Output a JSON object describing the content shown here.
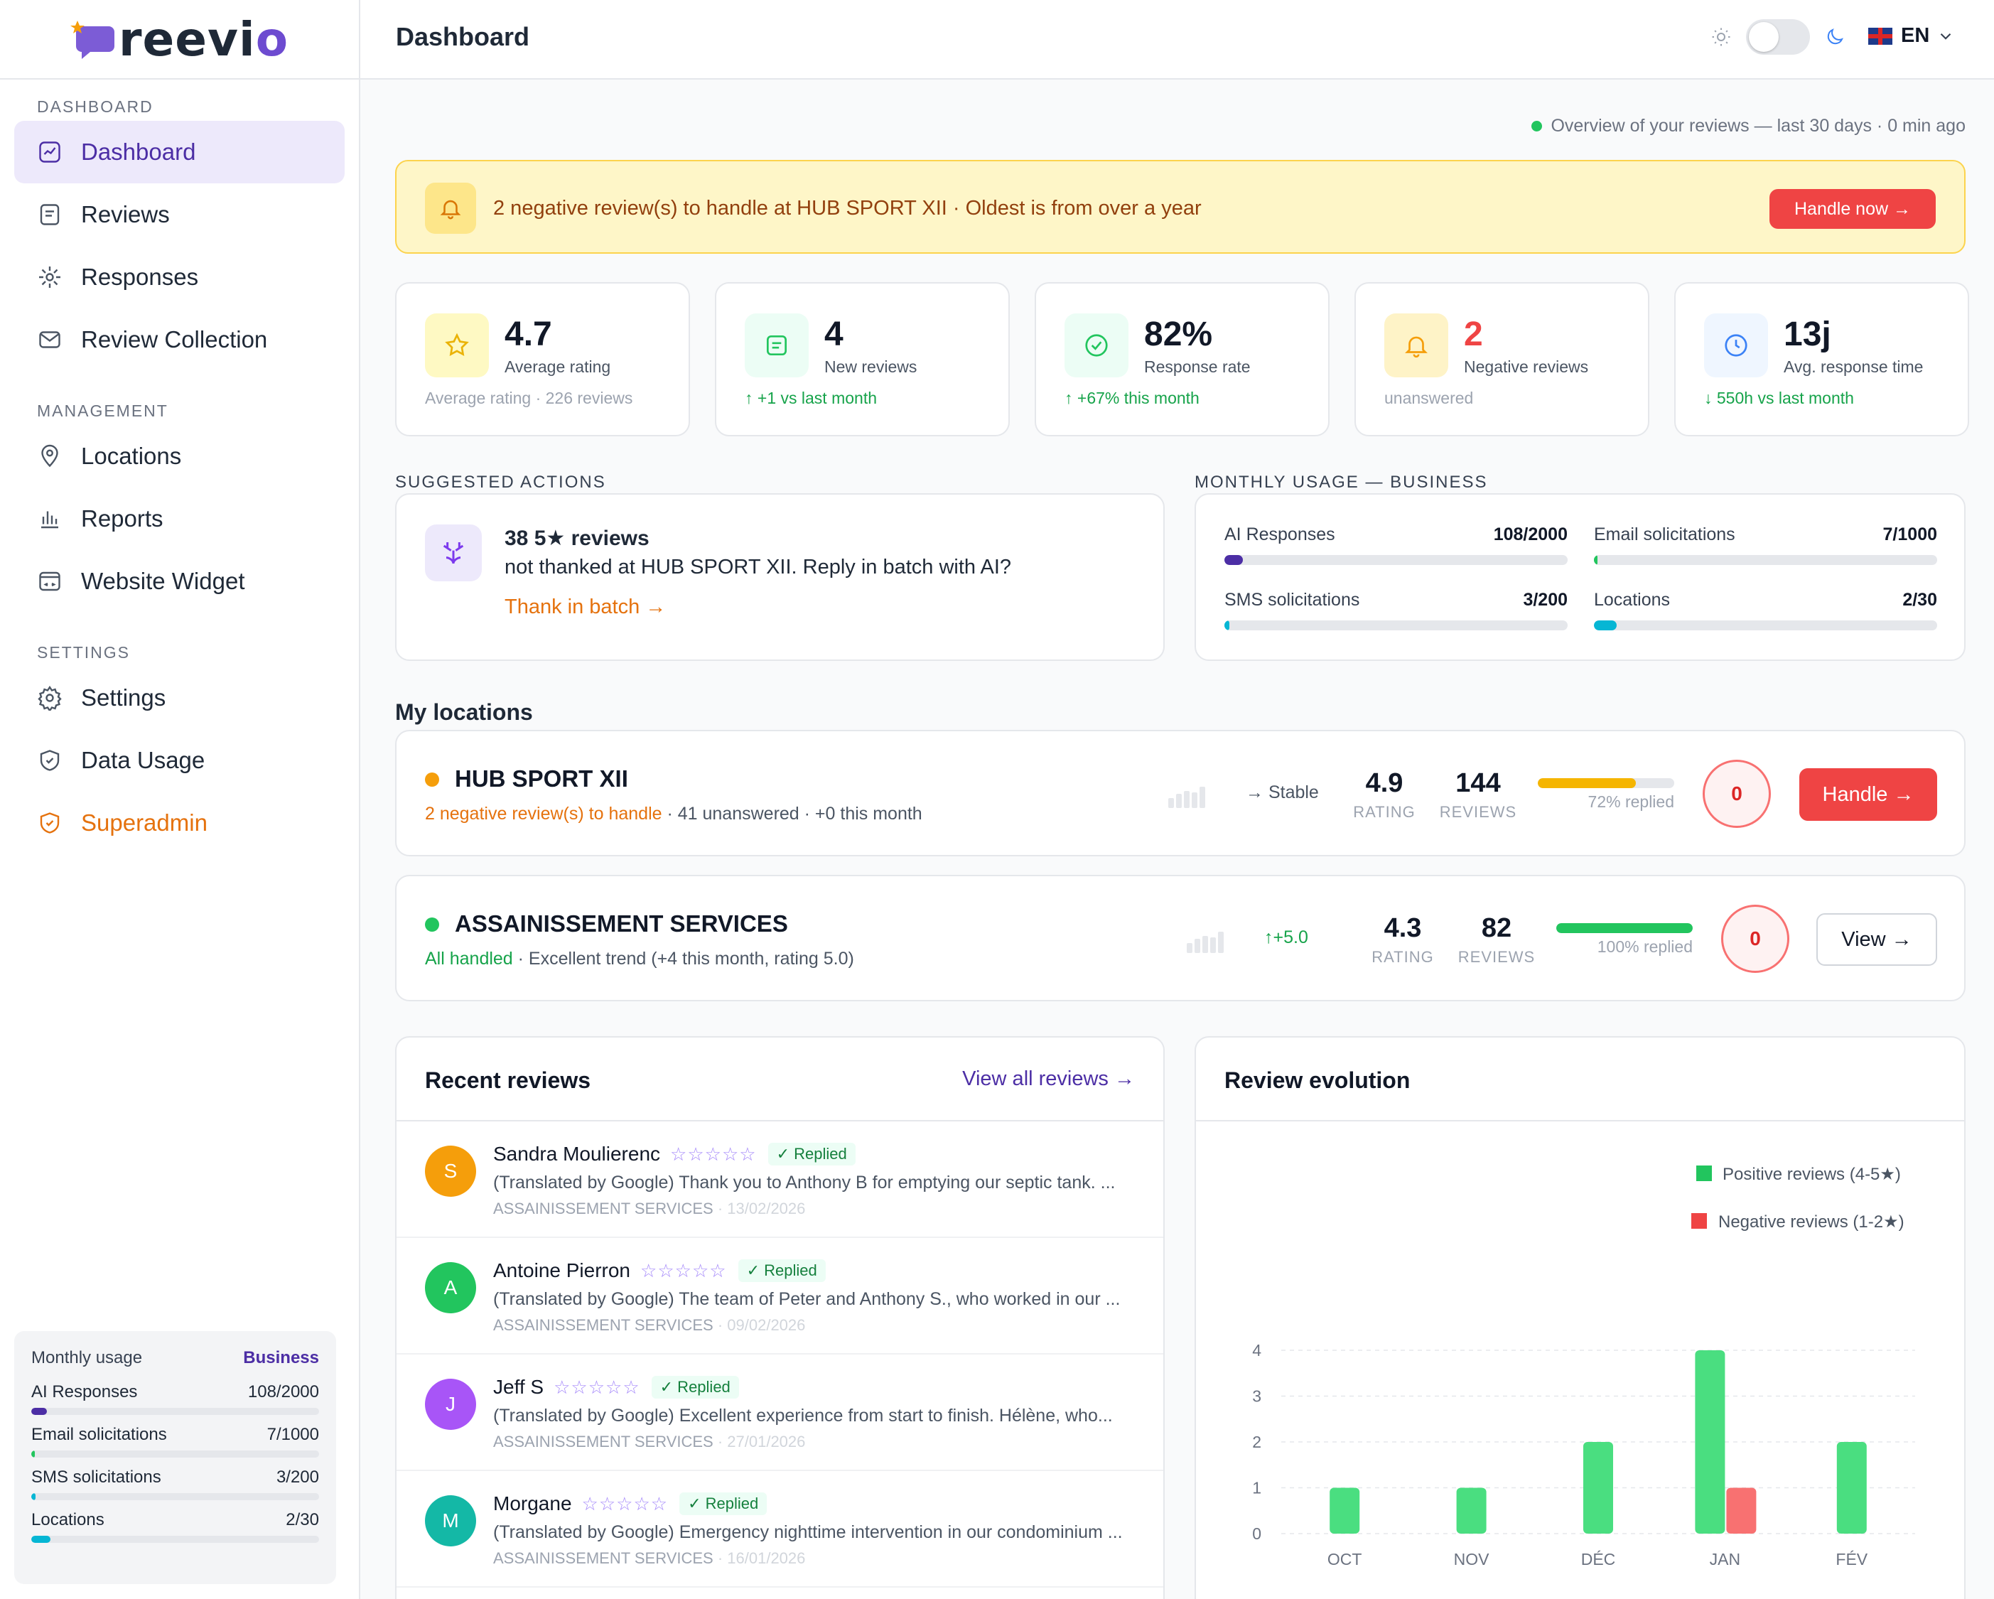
{
  "app": {
    "logo": "reevio",
    "page_title": "Dashboard",
    "lang": "EN"
  },
  "sidebar": {
    "sections": [
      {
        "label": "DASHBOARD",
        "items": [
          {
            "label": "Dashboard",
            "icon": "dashboard-icon",
            "active": true
          },
          {
            "label": "Reviews",
            "icon": "reviews-icon"
          },
          {
            "label": "Responses",
            "icon": "responses-icon"
          },
          {
            "label": "Review Collection",
            "icon": "mail-icon"
          }
        ]
      },
      {
        "label": "MANAGEMENT",
        "items": [
          {
            "label": "Locations",
            "icon": "location-pin-icon"
          },
          {
            "label": "Reports",
            "icon": "bar-chart-icon"
          },
          {
            "label": "Website Widget",
            "icon": "widget-icon"
          }
        ]
      },
      {
        "label": "SETTINGS",
        "items": [
          {
            "label": "Settings",
            "icon": "gear-icon"
          },
          {
            "label": "Data Usage",
            "icon": "shield-icon"
          },
          {
            "label": "Superadmin",
            "icon": "shield-icon",
            "accent": "#e5720e"
          }
        ]
      }
    ],
    "usage": {
      "title": "Monthly usage",
      "plan": "Business",
      "rows": [
        {
          "label": "AI Responses",
          "value": "108/2000",
          "fraction": 0.054,
          "color": "#4c2ea5"
        },
        {
          "label": "Email solicitations",
          "value": "7/1000",
          "fraction": 0.007,
          "color": "#22c55e"
        },
        {
          "label": "SMS solicitations",
          "value": "3/200",
          "fraction": 0.015,
          "color": "#06b6d4"
        },
        {
          "label": "Locations",
          "value": "2/30",
          "fraction": 0.067,
          "color": "#06b6d4"
        }
      ]
    }
  },
  "overview": "Overview of your reviews — last 30 days · 0 min ago",
  "alert": {
    "text": "2 negative review(s) to handle at HUB SPORT XII · Oldest is from over a year",
    "button": "Handle now →"
  },
  "stats": [
    {
      "value": "4.7",
      "label": "Average rating",
      "sub": "Average rating · 226 reviews",
      "icon": "star-icon",
      "icon_bg": "#fef9c3",
      "icon_color": "#eab308"
    },
    {
      "value": "4",
      "label": "New reviews",
      "sub": "↑  +1 vs last month",
      "icon": "message-icon",
      "icon_bg": "#ecfdf5",
      "icon_color": "#22c55e"
    },
    {
      "value": "82%",
      "label": "Response rate",
      "sub": "↑  +67% this month",
      "icon": "check-circle-icon",
      "icon_bg": "#ecfdf5",
      "icon_color": "#22c55e"
    },
    {
      "value": "2",
      "label": "Negative reviews",
      "sub": "unanswered",
      "icon": "bell-icon",
      "icon_bg": "#fef3c7",
      "icon_color": "#f59e0b",
      "value_color": "#ef4444"
    },
    {
      "value": "13j",
      "label": "Avg. response time",
      "sub": "↓  550h vs last month",
      "icon": "clock-icon",
      "icon_bg": "#eff6ff",
      "icon_color": "#3b82f6"
    }
  ],
  "suggested": {
    "section": "SUGGESTED ACTIONS",
    "title": "38 5★ reviews",
    "text": "not thanked at HUB SPORT XII. Reply in batch with AI?",
    "link": "Thank in batch →"
  },
  "monthly": {
    "section": "MONTHLY USAGE — BUSINESS",
    "rows": [
      {
        "label": "AI Responses",
        "value": "108/2000",
        "fraction": 0.054,
        "color": "#4c2ea5"
      },
      {
        "label": "Email solicitations",
        "value": "7/1000",
        "fraction": 0.007,
        "color": "#22c55e"
      },
      {
        "label": "SMS solicitations",
        "value": "3/200",
        "fraction": 0.015,
        "color": "#06b6d4"
      },
      {
        "label": "Locations",
        "value": "2/30",
        "fraction": 0.067,
        "color": "#06b6d4"
      }
    ]
  },
  "locations": {
    "title": "My locations",
    "items": [
      {
        "name": "HUB SPORT XII",
        "dot": "#f59e0b",
        "status": "2 negative review(s) to handle",
        "detail": " · 41 unanswered · +0 this month",
        "trend": "→ Stable",
        "rating": "4.9",
        "rating_label": "RATING",
        "reviews": "144",
        "reviews_label": "REVIEWS",
        "replied": "72% replied",
        "replied_fraction": 0.72,
        "bar_color": "#f5b500",
        "count": "0",
        "button": "Handle →"
      },
      {
        "name": "ASSAINISSEMENT SERVICES",
        "dot": "#22c55e",
        "status": "All handled",
        "detail": " · Excellent trend (+4 this month, rating 5.0)",
        "trend": "↑+5.0",
        "rating": "4.3",
        "rating_label": "RATING",
        "reviews": "82",
        "reviews_label": "REVIEWS",
        "replied": "100% replied",
        "replied_fraction": 1.0,
        "bar_color": "#22c55e",
        "count": "0",
        "button": "View →"
      }
    ]
  },
  "recent": {
    "title": "Recent reviews",
    "link": "View all reviews →",
    "items": [
      {
        "initial": "S",
        "color": "#f59e0b",
        "name": "Sandra Moulierenc",
        "stars": "☆☆☆☆☆",
        "badge": "✓ Replied",
        "text": "(Translated by Google) Thank you to Anthony B for emptying our septic tank. ...",
        "location": "ASSAINISSEMENT SERVICES",
        "date": "· 13/02/2026"
      },
      {
        "initial": "A",
        "color": "#22c55e",
        "name": "Antoine Pierron",
        "stars": "☆☆☆☆☆",
        "badge": "✓ Replied",
        "text": "(Translated by Google) The team of Peter and Anthony S., who worked in our ...",
        "location": "ASSAINISSEMENT SERVICES",
        "date": "· 09/02/2026"
      },
      {
        "initial": "J",
        "color": "#a855f7",
        "name": "Jeff S",
        "stars": "☆☆☆☆☆",
        "badge": "✓ Replied",
        "text": "(Translated by Google) Excellent experience from start to finish. Hélène, who...",
        "location": "ASSAINISSEMENT SERVICES",
        "date": "· 27/01/2026"
      },
      {
        "initial": "M",
        "color": "#14b8a6",
        "name": "Morgane",
        "stars": "☆☆☆☆☆",
        "badge": "✓ Replied",
        "text": "(Translated by Google) Emergency nighttime intervention in our condominium ...",
        "location": "ASSAINISSEMENT SERVICES",
        "date": "· 16/01/2026"
      }
    ]
  },
  "evolution": {
    "title": "Review evolution"
  },
  "chart_data": {
    "type": "bar",
    "title": "Review evolution",
    "categories": [
      "OCT",
      "NOV",
      "DÉC",
      "JAN",
      "FÉV"
    ],
    "series": [
      {
        "name": "Positive reviews (4-5★)",
        "color": "#4ade80",
        "values": [
          1,
          1,
          2,
          4,
          2
        ]
      },
      {
        "name": "Negative reviews (1-2★)",
        "color": "#f87171",
        "values": [
          0,
          0,
          0,
          1,
          0
        ]
      }
    ],
    "yticks": [
      0,
      1,
      2,
      3,
      4
    ],
    "ylim": [
      0,
      4
    ],
    "legend": "top-right",
    "xlabel": "",
    "ylabel": ""
  }
}
